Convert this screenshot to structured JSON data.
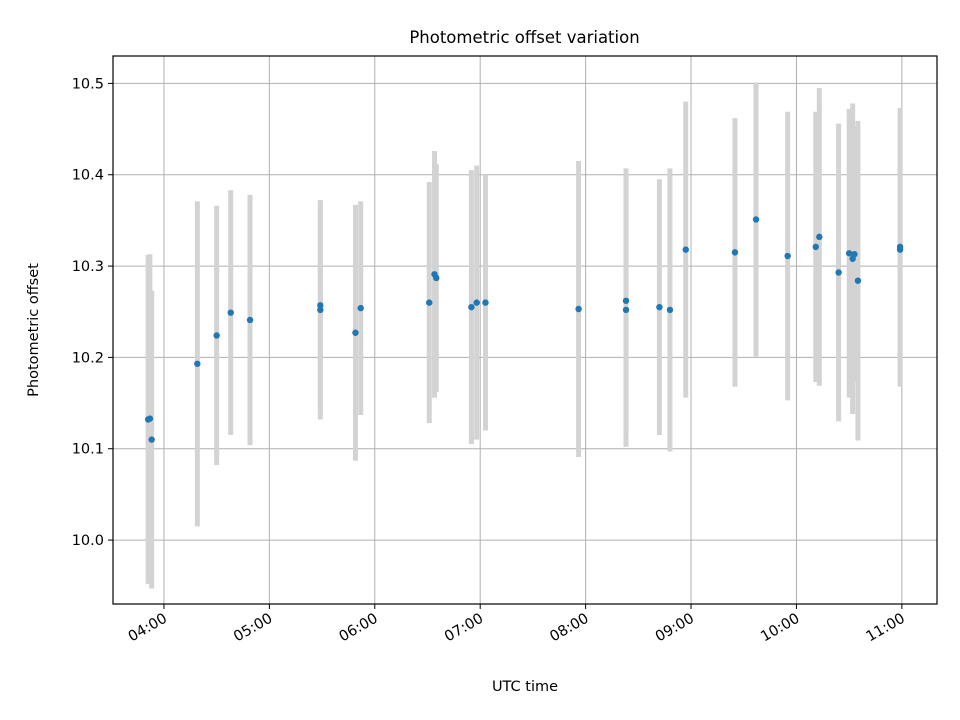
{
  "colors": {
    "marker": "#1f77b4",
    "errorbar": "#d3d3d3",
    "grid": "#b0b0b0",
    "axes": "#000000",
    "background": "#ffffff"
  },
  "chart_data": {
    "type": "scatter",
    "title": "Photometric offset variation",
    "xlabel": "UTC time",
    "ylabel": "Photometric offset",
    "grid": true,
    "xlim": [
      "03:31",
      "11:20"
    ],
    "ylim": [
      9.93,
      10.53
    ],
    "x_ticks": [
      "04:00",
      "05:00",
      "06:00",
      "07:00",
      "08:00",
      "09:00",
      "10:00",
      "11:00"
    ],
    "y_ticks": [
      "10.0",
      "10.1",
      "10.2",
      "10.3",
      "10.4",
      "10.5"
    ],
    "series": [
      {
        "points": [
          {
            "x": "03:51",
            "y": 10.132,
            "err": 0.18
          },
          {
            "x": "03:52",
            "y": 10.133,
            "err": 0.18
          },
          {
            "x": "03:53",
            "y": 10.11,
            "err": 0.163
          },
          {
            "x": "04:19",
            "y": 10.193,
            "err": 0.178
          },
          {
            "x": "04:30",
            "y": 10.224,
            "err": 0.142
          },
          {
            "x": "04:38",
            "y": 10.249,
            "err": 0.134
          },
          {
            "x": "04:49",
            "y": 10.241,
            "err": 0.137
          },
          {
            "x": "05:29",
            "y": 10.257,
            "err": 0.115
          },
          {
            "x": "05:29",
            "y": 10.252,
            "err": 0.12
          },
          {
            "x": "05:49",
            "y": 10.227,
            "err": 0.14
          },
          {
            "x": "05:52",
            "y": 10.254,
            "err": 0.117
          },
          {
            "x": "06:31",
            "y": 10.26,
            "err": 0.132
          },
          {
            "x": "06:34",
            "y": 10.291,
            "err": 0.135
          },
          {
            "x": "06:35",
            "y": 10.287,
            "err": 0.125
          },
          {
            "x": "06:55",
            "y": 10.255,
            "err": 0.15
          },
          {
            "x": "06:58",
            "y": 10.26,
            "err": 0.15
          },
          {
            "x": "07:03",
            "y": 10.26,
            "err": 0.14
          },
          {
            "x": "07:56",
            "y": 10.253,
            "err": 0.162
          },
          {
            "x": "08:23",
            "y": 10.262,
            "err": 0.145
          },
          {
            "x": "08:23",
            "y": 10.252,
            "err": 0.15
          },
          {
            "x": "08:42",
            "y": 10.255,
            "err": 0.14
          },
          {
            "x": "08:48",
            "y": 10.252,
            "err": 0.155
          },
          {
            "x": "08:57",
            "y": 10.318,
            "err": 0.162
          },
          {
            "x": "09:25",
            "y": 10.315,
            "err": 0.147
          },
          {
            "x": "09:37",
            "y": 10.351,
            "err": 0.15
          },
          {
            "x": "09:55",
            "y": 10.311,
            "err": 0.158
          },
          {
            "x": "10:11",
            "y": 10.321,
            "err": 0.148
          },
          {
            "x": "10:13",
            "y": 10.332,
            "err": 0.163
          },
          {
            "x": "10:24",
            "y": 10.293,
            "err": 0.163
          },
          {
            "x": "10:30",
            "y": 10.314,
            "err": 0.158
          },
          {
            "x": "10:32",
            "y": 10.308,
            "err": 0.17
          },
          {
            "x": "10:33",
            "y": 10.313,
            "err": 0.14
          },
          {
            "x": "10:35",
            "y": 10.284,
            "err": 0.175
          },
          {
            "x": "10:59",
            "y": 10.321,
            "err": 0.152
          },
          {
            "x": "10:59",
            "y": 10.318,
            "err": 0.15
          }
        ]
      }
    ]
  }
}
